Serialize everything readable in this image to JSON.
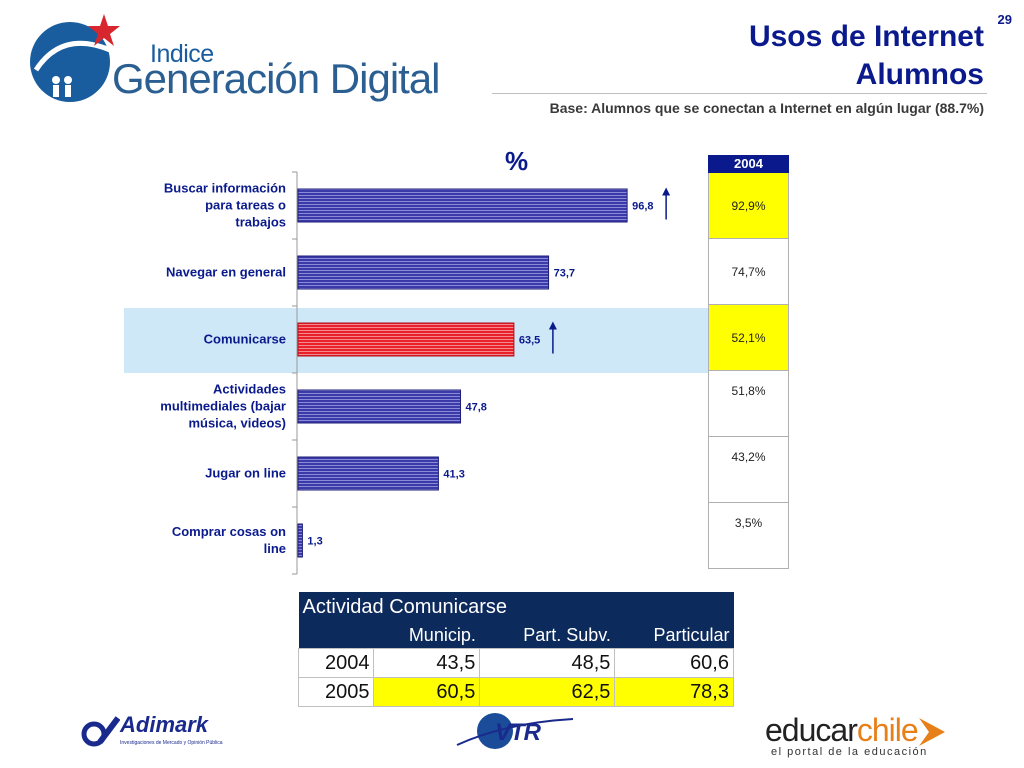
{
  "header": {
    "logo_small": "Indice",
    "logo_big": "Generación Digital",
    "title_line1": "Usos de Internet",
    "title_line2": "Alumnos",
    "page_number": "29",
    "subtitle": "Base: Alumnos que se conectan a Internet en algún lugar (88.7%)"
  },
  "chart_data": {
    "type": "bar",
    "orientation": "horizontal",
    "unit_label": "%",
    "categories": [
      [
        "Buscar información",
        "para tareas o",
        "trabajos"
      ],
      [
        "Navegar en general"
      ],
      [
        "Comunicarse"
      ],
      [
        "Actividades",
        "multimediales (bajar",
        "música, videos)"
      ],
      [
        "Jugar on line"
      ],
      [
        "Comprar cosas on",
        "line"
      ]
    ],
    "values": [
      96.8,
      73.7,
      63.5,
      47.8,
      41.3,
      1.3
    ],
    "value_labels": [
      "96,8",
      "73,7",
      "63,5",
      "47,8",
      "41,3",
      "1,3"
    ],
    "highlighted_category_index": 2,
    "up_arrow_indices": [
      0,
      2
    ],
    "xlim": [
      0,
      100
    ],
    "colors": {
      "bar": "#2e2e9a",
      "highlight_bar": "#e8202a",
      "highlight_band": "#cfe8f8",
      "arrow": "#0a1a8c"
    },
    "comparison_column": {
      "header": "2004",
      "values": [
        "92,9%",
        "74,7%",
        "52,1%",
        "51,8%",
        "43,2%",
        "3,5%"
      ],
      "highlighted_indices": [
        0,
        2
      ]
    }
  },
  "activity_table": {
    "title": "Actividad Comunicarse",
    "columns": [
      "Municip.",
      "Part. Subv.",
      "Particular"
    ],
    "rows": [
      {
        "year": "2004",
        "values": [
          "43,5",
          "48,5",
          "60,6"
        ]
      },
      {
        "year": "2005",
        "values": [
          "60,5",
          "62,5",
          "78,3"
        ]
      }
    ]
  },
  "footer": {
    "adimark": "Adimark",
    "adimark_tag": "Investigaciones de Mercado y Opinión Pública",
    "vtr": "VTR",
    "educar_a": "educar",
    "educar_b": "chile",
    "educar_tag": "el portal de la educación"
  }
}
